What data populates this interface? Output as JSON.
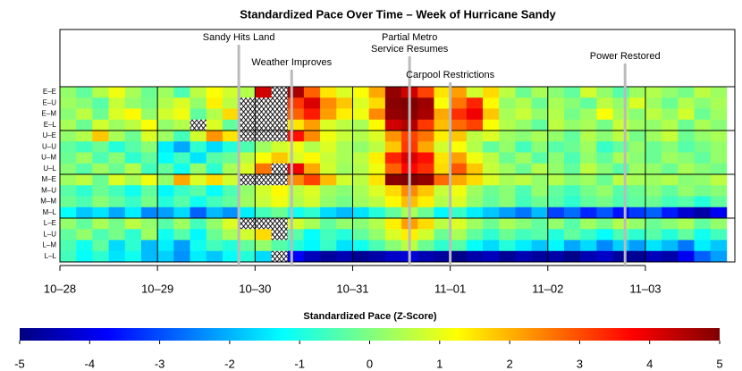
{
  "chart_data": {
    "type": "heatmap",
    "title": "Standardized Pace Over Time – Week of Hurricane Sandy",
    "x": [
      0,
      4,
      8,
      12,
      16,
      20,
      24,
      28,
      32,
      36,
      40,
      44,
      48,
      52,
      56,
      60,
      64,
      68,
      72,
      76,
      80,
      84,
      88,
      92,
      96,
      100,
      104,
      108,
      112,
      116,
      120,
      124,
      128,
      132,
      136,
      140,
      144,
      148,
      152,
      156,
      160
    ],
    "xlim": [
      0,
      166
    ],
    "xticks": [
      {
        "value": 0,
        "label": "10–28"
      },
      {
        "value": 24,
        "label": "10–29"
      },
      {
        "value": 48,
        "label": "10–30"
      },
      {
        "value": 72,
        "label": "10–31"
      },
      {
        "value": 96,
        "label": "11–01"
      },
      {
        "value": 120,
        "label": "11–02"
      },
      {
        "value": 144,
        "label": "11–03"
      }
    ],
    "grid": true,
    "rows": [
      "E–E",
      "E–U",
      "E–M",
      "E–L",
      "U–E",
      "U–U",
      "U–M",
      "U–L",
      "M–E",
      "M–U",
      "M–M",
      "M–L",
      "L–E",
      "L–U",
      "L–M",
      "L–L"
    ],
    "values": [
      [
        0.2,
        -0.3,
        0.5,
        1.1,
        0.4,
        -0.2,
        0.3,
        -0.5,
        0.6,
        1.2,
        0.8,
        0.5,
        4.2,
        null,
        4.6,
        2.8,
        1.5,
        0.9,
        1.2,
        2.1,
        4.8,
        4.2,
        3.1,
        1.5,
        2.2,
        0.8,
        1.6,
        0.6,
        -0.2,
        0.4,
        0.1,
        -0.3,
        0.8,
        0.2,
        -0.4,
        0.3,
        0.5,
        0.2,
        -0.1,
        0.6,
        0.3
      ],
      [
        0.3,
        0.1,
        -0.4,
        0.7,
        0.2,
        -0.1,
        0.5,
        0.9,
        0.2,
        1.4,
        0.6,
        null,
        null,
        null,
        3.2,
        4.1,
        2.4,
        1.8,
        0.9,
        1.6,
        4.9,
        5,
        4.7,
        1.2,
        2.6,
        3.4,
        1.3,
        0.2,
        0.5,
        -0.2,
        0.4,
        0.1,
        -0.3,
        0.6,
        0.2,
        0.9,
        0.3,
        -0.2,
        0.5,
        0.1,
        0.4
      ],
      [
        0.1,
        0.6,
        -0.2,
        0.9,
        1.3,
        0.2,
        0.8,
        1.1,
        -0.3,
        0.5,
        1.6,
        null,
        null,
        null,
        2.8,
        3.5,
        2.2,
        1.4,
        1.1,
        2.4,
        4.8,
        4.9,
        4.6,
        2.1,
        3.3,
        3.9,
        1.8,
        0.4,
        0.7,
        0.2,
        0.5,
        -0.1,
        0.3,
        1.2,
        0.4,
        0.1,
        0.6,
        0.2,
        0.8,
        -0.2,
        0.3
      ],
      [
        0.4,
        -0.2,
        0.8,
        0.3,
        0.6,
        1.2,
        0.2,
        0.5,
        null,
        0.9,
        -0.3,
        null,
        null,
        null,
        1.5,
        2.2,
        0.9,
        0.6,
        0.4,
        1.3,
        4.2,
        4.5,
        3.2,
        1.9,
        2.7,
        3.1,
        1.2,
        0.5,
        0.2,
        -0.3,
        0.6,
        0.2,
        0.4,
        -0.1,
        0.7,
        0.3,
        0.2,
        0.5,
        -0.2,
        0.4,
        0.1
      ],
      [
        0.2,
        0.5,
        1.8,
        0.4,
        -0.2,
        0.9,
        0.3,
        -0.6,
        0.8,
        2.3,
        1.5,
        null,
        null,
        null,
        3.6,
        2.4,
        1.1,
        0.7,
        0.5,
        0.9,
        2.3,
        3.1,
        2.6,
        1.4,
        1.8,
        0.6,
        0.9,
        0.3,
        0.1,
        0.4,
        0.2,
        -0.3,
        0.5,
        0.1,
        0.6,
        -0.1,
        0.3,
        0.7,
        -0.2,
        0.2,
        0.4
      ],
      [
        -0.3,
        -0.6,
        -0.2,
        -0.9,
        -0.4,
        0.1,
        -1.4,
        -2.1,
        -0.8,
        -1.6,
        -0.9,
        -0.5,
        0.3,
        0.8,
        1.1,
        0.5,
        0.9,
        0.4,
        0.2,
        0.6,
        1.8,
        3.2,
        2.1,
        0.8,
        1.2,
        0.5,
        -0.3,
        0.2,
        -0.6,
        0.1,
        -0.4,
        -0.2,
        0.3,
        -0.7,
        -0.3,
        0.2,
        -0.2,
        0.1,
        -0.4,
        -0.1,
        0.2
      ],
      [
        -0.2,
        0.3,
        -0.5,
        0.1,
        -0.8,
        -0.3,
        -1.2,
        -0.6,
        -1.5,
        -0.4,
        -0.2,
        0.6,
        1.2,
        1.8,
        0.9,
        1.3,
        0.7,
        0.4,
        0.6,
        1.4,
        3.4,
        4.1,
        3.6,
        1.5,
        2.2,
        1.1,
        0.6,
        -0.2,
        0.3,
        -0.4,
        0.1,
        -0.5,
        0.2,
        -0.3,
        0.4,
        0.1,
        -0.2,
        0.3,
        0.1,
        -0.3,
        0.2
      ],
      [
        0.1,
        -0.4,
        0.3,
        -0.2,
        0.5,
        -0.6,
        -0.3,
        -1.1,
        0.2,
        -0.8,
        0.4,
        0.9,
        2.6,
        null,
        3.9,
        2.1,
        0.8,
        0.3,
        0.5,
        1.1,
        2.8,
        3.7,
        3.3,
        1.6,
        2.9,
        1.8,
        0.7,
        0.3,
        -0.2,
        0.5,
        0.2,
        -0.3,
        0.6,
        0.1,
        -0.4,
        0.3,
        0.2,
        -0.2,
        0.4,
        0.1,
        -0.1
      ],
      [
        0.3,
        0.6,
        -0.2,
        0.9,
        0.4,
        1.1,
        0.2,
        2.1,
        0.9,
        1.6,
        0.8,
        null,
        null,
        null,
        2.4,
        3.1,
        1.9,
        0.8,
        0.6,
        1.5,
        4.9,
        5,
        4.8,
        2.7,
        2.1,
        1.6,
        0.9,
        0.4,
        0.6,
        0.2,
        0.5,
        0.1,
        0.3,
        -0.2,
        0.6,
        0.4,
        0.3,
        0.5,
        0.1,
        0.2,
        0.6
      ],
      [
        -0.4,
        -0.8,
        -0.2,
        -0.6,
        -1.1,
        -0.3,
        -1.3,
        -0.7,
        -0.4,
        -1.2,
        -0.5,
        0.2,
        0.8,
        1.3,
        0.6,
        0.9,
        0.3,
        0.1,
        0.4,
        0.9,
        1.6,
        2.4,
        1.8,
        0.7,
        1.1,
        0.3,
        -0.2,
        0.1,
        -0.5,
        0.2,
        -0.3,
        -0.6,
        -0.1,
        0.2,
        -0.4,
        -0.2,
        0.1,
        -0.3,
        0.2,
        -0.1,
        0.1
      ],
      [
        -0.2,
        -0.5,
        0.1,
        -0.3,
        -0.7,
        -0.1,
        -0.9,
        -0.4,
        -1.1,
        -0.6,
        -0.3,
        0.3,
        0.7,
        1.1,
        0.5,
        0.8,
        0.2,
        -0.1,
        0.3,
        0.6,
        1.3,
        1.9,
        1.4,
        0.5,
        0.9,
        0.2,
        -0.3,
        0.1,
        -0.6,
        -0.2,
        -0.4,
        -0.8,
        -0.3,
        -0.1,
        -0.5,
        -0.3,
        -0.2,
        -0.6,
        -0.4,
        -0.9,
        -0.3
      ],
      [
        -1.2,
        -1.8,
        -1.5,
        -2.1,
        -1.4,
        -2.4,
        -2.2,
        -1.6,
        -2.8,
        -1.9,
        -2.3,
        -1.4,
        -0.6,
        -0.2,
        -1.1,
        -0.8,
        -1.6,
        -1.9,
        -1.5,
        -0.9,
        -0.3,
        0.4,
        -0.2,
        -1.3,
        -0.7,
        -1.4,
        -1.8,
        -2.2,
        -2.6,
        -1.9,
        -3.1,
        -2.7,
        -3.4,
        -2.9,
        -3.6,
        -3.2,
        -2.8,
        -3.5,
        -4.2,
        -4.6,
        -3.9
      ],
      [
        0.2,
        -0.3,
        0.4,
        -0.1,
        0.6,
        0.2,
        -0.4,
        0.3,
        -0.6,
        0.2,
        0.9,
        null,
        null,
        null,
        0.8,
        0.4,
        -0.3,
        0.2,
        0.1,
        0.5,
        1.4,
        2.2,
        1.6,
        0.6,
        0.9,
        0.3,
        -0.2,
        0.4,
        0.1,
        -0.3,
        0.2,
        -0.4,
        0.3,
        -0.1,
        0.5,
        0.2,
        -0.2,
        0.1,
        0.4,
        -0.3,
        0.2
      ],
      [
        -0.3,
        0.2,
        -0.5,
        -0.1,
        -0.8,
        0.3,
        -1.1,
        -0.4,
        -1.3,
        -0.2,
        0.4,
        0.8,
        1.6,
        null,
        -0.4,
        -1.2,
        -0.6,
        -0.9,
        -0.3,
        0.2,
        0.9,
        1.4,
        0.8,
        -0.2,
        0.4,
        -0.3,
        -0.8,
        -0.2,
        -0.6,
        -0.4,
        -0.9,
        -0.3,
        -0.7,
        -1.2,
        -0.5,
        -0.8,
        -0.4,
        -0.9,
        -0.3,
        -1.1,
        -0.6
      ],
      [
        -0.5,
        -1.1,
        -0.3,
        -1.6,
        -0.8,
        -1.9,
        -1.4,
        -2.2,
        -1.1,
        -0.6,
        -0.9,
        -0.3,
        0.2,
        -0.4,
        -0.9,
        -1.3,
        -0.7,
        -1.5,
        -1.1,
        -0.5,
        0.1,
        0.6,
        -0.2,
        -0.8,
        -0.4,
        -1.2,
        -1.6,
        -0.9,
        -1.4,
        -1.8,
        -1.3,
        -2.1,
        -1.6,
        -2.4,
        -1.7,
        -2.2,
        -1.5,
        -1.9,
        -2.6,
        -1.4,
        -1.8
      ],
      [
        -0.6,
        -1.2,
        -0.8,
        -1.5,
        -1.1,
        -1.9,
        -1.7,
        -2.3,
        -1.4,
        -1.8,
        -1.2,
        -0.9,
        -1.6,
        null,
        -3.8,
        -4.4,
        -4.7,
        -4.5,
        -4.8,
        -4.6,
        -4.3,
        -4.1,
        -4.5,
        -4.7,
        -4.9,
        -4.6,
        -4.4,
        -4.8,
        -4.5,
        -4.7,
        -4.6,
        -4.9,
        -4.5,
        -4.3,
        -4.7,
        -4.8,
        -4.4,
        -4.6,
        -3.9,
        -2.8,
        -2.2
      ]
    ],
    "annotations": [
      {
        "x": 44,
        "text": [
          "Sandy Hits Land"
        ]
      },
      {
        "x": 57,
        "text": [
          "Weather Improves"
        ]
      },
      {
        "x": 86,
        "text": [
          "Partial Metro",
          "Service Resumes"
        ]
      },
      {
        "x": 96,
        "text": [
          "Carpool Restrictions"
        ]
      },
      {
        "x": 139,
        "text": [
          "Power Restored"
        ]
      }
    ],
    "colorbar_title": "Standardized Pace (Z-Score)",
    "colorbar_lim": [
      -5,
      5
    ],
    "colorbar_ticks": [
      -5,
      -4,
      -3,
      -2,
      -1,
      0,
      1,
      2,
      3,
      4,
      5
    ],
    "colormap": [
      "#00007f",
      "#0000ff",
      "#007fff",
      "#00ffff",
      "#7fff7f",
      "#ffff00",
      "#ff7f00",
      "#ff0000",
      "#7f0000"
    ]
  }
}
